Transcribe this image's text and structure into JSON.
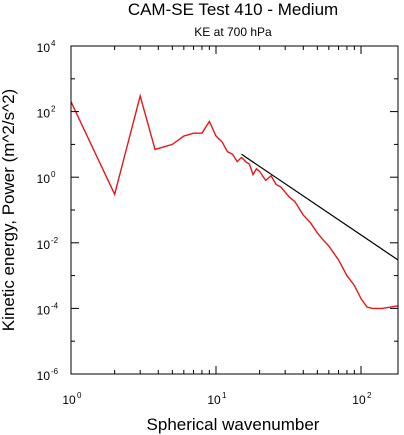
{
  "chart_data": {
    "type": "line",
    "title": "CAM-SE Test 410 - Medium",
    "subtitle": "KE at 700 hPa",
    "xlabel": "Spherical wavenumber",
    "ylabel": "Kinetic energy, Power (m^2/s^2)",
    "x_scale": "log",
    "y_scale": "log",
    "xlim": [
      1,
      180
    ],
    "ylim": [
      1e-06,
      10000
    ],
    "x_ticks": [
      {
        "value": 1,
        "base": "10",
        "exp": "0"
      },
      {
        "value": 10,
        "base": "10",
        "exp": "1"
      },
      {
        "value": 100,
        "base": "10",
        "exp": "2"
      }
    ],
    "y_ticks": [
      {
        "value": 10000,
        "base": "10",
        "exp": "4"
      },
      {
        "value": 100,
        "base": "10",
        "exp": "2"
      },
      {
        "value": 1,
        "base": "10",
        "exp": "0"
      },
      {
        "value": 0.01,
        "base": "10",
        "exp": "-2"
      },
      {
        "value": 0.0001,
        "base": "10",
        "exp": "-4"
      },
      {
        "value": 1e-06,
        "base": "10",
        "exp": "-6"
      }
    ],
    "grid": false,
    "series": [
      {
        "color": "#e0191b",
        "points": [
          [
            1,
            200
          ],
          [
            2,
            0.3
          ],
          [
            3,
            300
          ],
          [
            3.8,
            7
          ],
          [
            5,
            10
          ],
          [
            6,
            18
          ],
          [
            7,
            22
          ],
          [
            8,
            22
          ],
          [
            9,
            50
          ],
          [
            10,
            18
          ],
          [
            11,
            12
          ],
          [
            12,
            6
          ],
          [
            13,
            5
          ],
          [
            14,
            3
          ],
          [
            15,
            4
          ],
          [
            16,
            3
          ],
          [
            17,
            2.5
          ],
          [
            18,
            1.2
          ],
          [
            19,
            1.8
          ],
          [
            20,
            1.5
          ],
          [
            22,
            0.8
          ],
          [
            24,
            1.1
          ],
          [
            26,
            0.6
          ],
          [
            28,
            0.5
          ],
          [
            30,
            0.35
          ],
          [
            32,
            0.25
          ],
          [
            35,
            0.18
          ],
          [
            40,
            0.07
          ],
          [
            45,
            0.04
          ],
          [
            50,
            0.02
          ],
          [
            55,
            0.012
          ],
          [
            60,
            0.008
          ],
          [
            70,
            0.003
          ],
          [
            80,
            0.001
          ],
          [
            90,
            0.0005
          ],
          [
            100,
            0.0002
          ],
          [
            110,
            0.00011
          ],
          [
            120,
            0.0001
          ],
          [
            140,
            0.0001
          ],
          [
            160,
            0.00011
          ],
          [
            180,
            0.00012
          ]
        ]
      },
      {
        "color": "#000000",
        "points": [
          [
            15,
            5
          ],
          [
            180,
            0.003
          ]
        ]
      }
    ]
  }
}
